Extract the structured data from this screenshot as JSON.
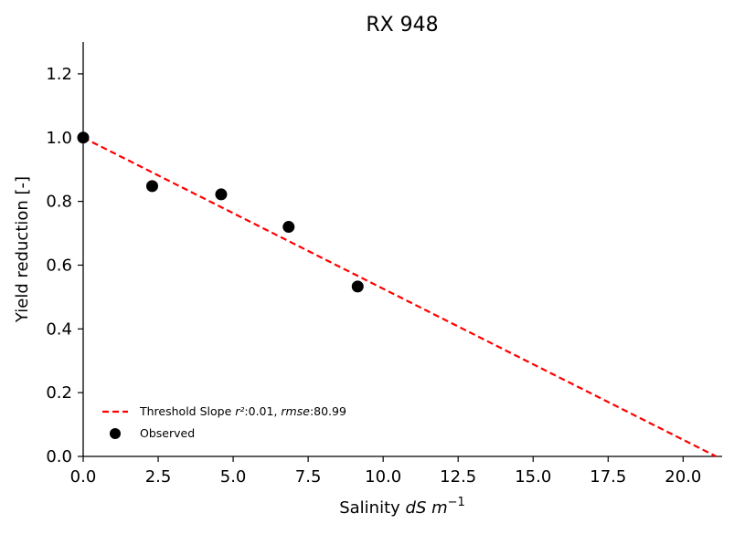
{
  "chart_data": {
    "type": "scatter",
    "title": "RX 948",
    "xlabel": {
      "prefix": "Salinity ",
      "math": "dS m",
      "exponent": "−1"
    },
    "ylabel": "Yield reduction [-]",
    "xlim": [
      0,
      21.3
    ],
    "ylim": [
      0,
      1.3
    ],
    "xticks": [
      "0.0",
      "2.5",
      "5.0",
      "7.5",
      "10.0",
      "12.5",
      "15.0",
      "17.5",
      "20.0"
    ],
    "yticks": [
      "0.0",
      "0.2",
      "0.4",
      "0.6",
      "0.8",
      "1.0",
      "1.2"
    ],
    "grid": false,
    "legend_position": "lower-left",
    "series": [
      {
        "name": "Observed",
        "kind": "scatter",
        "color": "#000000",
        "x": [
          0.0,
          2.3,
          4.6,
          6.85,
          9.15
        ],
        "y": [
          1.0,
          0.848,
          0.822,
          0.72,
          0.533
        ]
      },
      {
        "name": "Threshold Slope",
        "kind": "line",
        "style": "dashed",
        "color": "#ff0000",
        "x": [
          0.0,
          21.1
        ],
        "y": [
          1.0,
          0.0
        ],
        "r2_label": "r²",
        "r2_value": ":0.01, ",
        "rmse_label": "rmse",
        "rmse_value": ":80.99"
      }
    ]
  }
}
